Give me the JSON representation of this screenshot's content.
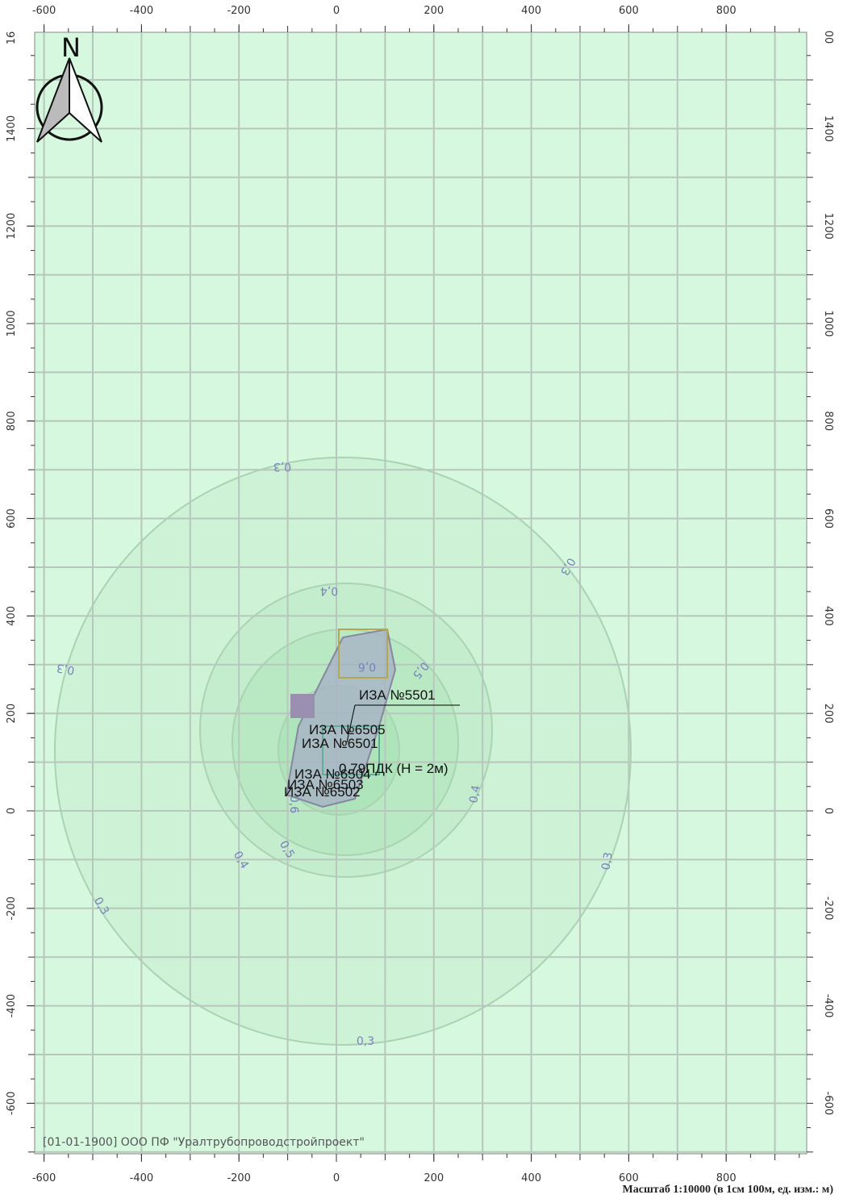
{
  "map": {
    "north": "N",
    "x_ticks": [
      -600,
      -400,
      -200,
      0,
      200,
      400,
      600,
      800
    ],
    "y_ticks": [
      -600,
      -400,
      -200,
      0,
      200,
      400,
      600,
      800,
      1000,
      1200,
      1400
    ],
    "y_top_label_left": "16",
    "y_top_label_right": "00",
    "contours": [
      {
        "level": "0,3"
      },
      {
        "level": "0,4"
      },
      {
        "level": "0,5"
      },
      {
        "level": "0,6"
      }
    ],
    "sources": [
      "ИЗА №5501",
      "ИЗА №6505",
      "ИЗА №6501",
      "ИЗА №6504",
      "ИЗА №6503",
      "ИЗА №6502"
    ],
    "max_note": "0.79ПДК (H = 2м)",
    "footer": "[01-01-1900] ООО ПФ \"Уралтрубопроводстройпроект\"",
    "scale": "Масштаб 1:10000 (в 1см 100м, ед. изм.: м)"
  }
}
